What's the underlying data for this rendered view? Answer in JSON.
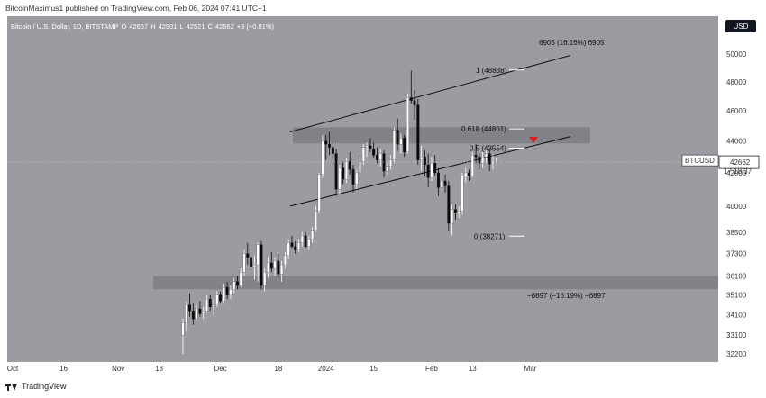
{
  "header": {
    "author_line": "BitcoinMaximus1 published on TradingView.com, Feb 06, 2024 07:41 UTC+1"
  },
  "footer": {
    "brand": "TradingView"
  },
  "currency_button": "USD",
  "colors": {
    "background": "#9b9ca1",
    "bull_candle": "#ffffff",
    "bear_candle": "#0b0b0b",
    "zone": "#7e7f84",
    "marker": "#e01f1f"
  },
  "chart_data": {
    "type": "candlestick",
    "title": "Bitcoin / U.S. Dollar, 1D, BITSTAMP",
    "ohlc_header": {
      "o_label": "O",
      "o": "42657",
      "h_label": "H",
      "h": "42901",
      "l_label": "L",
      "l": "42521",
      "c_label": "C",
      "c": "42662",
      "change": "+3 (+0.01%)"
    },
    "x_ticks": [
      "Oct",
      "16",
      "Nov",
      "13",
      "Dec",
      "18",
      "2024",
      "15",
      "Feb",
      "13",
      "Mar"
    ],
    "y_ticks": [
      "50000",
      "48000",
      "46000",
      "44000",
      "42000",
      "40000",
      "38500",
      "37300",
      "36100",
      "35100",
      "34100",
      "33100",
      "32200"
    ],
    "y_scale": "log",
    "price_label": {
      "symbol": "BTCUSD",
      "price": "42662",
      "countdown": "17:18:37"
    },
    "candles": [
      {
        "o": 33100,
        "h": 33900,
        "l": 32200,
        "c": 33700
      },
      {
        "o": 33700,
        "h": 34800,
        "l": 33300,
        "c": 34600
      },
      {
        "o": 34600,
        "h": 35200,
        "l": 34000,
        "c": 34300
      },
      {
        "o": 34300,
        "h": 34700,
        "l": 33600,
        "c": 33900
      },
      {
        "o": 33900,
        "h": 34600,
        "l": 33800,
        "c": 34400
      },
      {
        "o": 34400,
        "h": 34800,
        "l": 34000,
        "c": 34150
      },
      {
        "o": 34150,
        "h": 34500,
        "l": 33900,
        "c": 34300
      },
      {
        "o": 34300,
        "h": 35100,
        "l": 34200,
        "c": 34900
      },
      {
        "o": 34900,
        "h": 35100,
        "l": 34300,
        "c": 34500
      },
      {
        "o": 34500,
        "h": 34900,
        "l": 34100,
        "c": 34600
      },
      {
        "o": 34600,
        "h": 35300,
        "l": 34500,
        "c": 35100
      },
      {
        "o": 35100,
        "h": 35300,
        "l": 34700,
        "c": 34800
      },
      {
        "o": 34800,
        "h": 35700,
        "l": 34700,
        "c": 35500
      },
      {
        "o": 35500,
        "h": 35800,
        "l": 34900,
        "c": 35100
      },
      {
        "o": 35100,
        "h": 35600,
        "l": 34900,
        "c": 35400
      },
      {
        "o": 35400,
        "h": 36000,
        "l": 35200,
        "c": 35800
      },
      {
        "o": 35800,
        "h": 36100,
        "l": 35400,
        "c": 35600
      },
      {
        "o": 35600,
        "h": 36500,
        "l": 35500,
        "c": 36300
      },
      {
        "o": 36300,
        "h": 37500,
        "l": 36100,
        "c": 37300
      },
      {
        "o": 37300,
        "h": 37900,
        "l": 36700,
        "c": 37100
      },
      {
        "o": 37100,
        "h": 37600,
        "l": 36400,
        "c": 36600
      },
      {
        "o": 36600,
        "h": 37200,
        "l": 35900,
        "c": 36700
      },
      {
        "o": 36700,
        "h": 37900,
        "l": 35800,
        "c": 37800
      },
      {
        "o": 37800,
        "h": 38000,
        "l": 35400,
        "c": 35600
      },
      {
        "o": 35600,
        "h": 36500,
        "l": 35300,
        "c": 36300
      },
      {
        "o": 36300,
        "h": 37100,
        "l": 36000,
        "c": 36800
      },
      {
        "o": 36800,
        "h": 37400,
        "l": 36300,
        "c": 36500
      },
      {
        "o": 36500,
        "h": 37100,
        "l": 36100,
        "c": 36900
      },
      {
        "o": 36900,
        "h": 37300,
        "l": 36000,
        "c": 36200
      },
      {
        "o": 36200,
        "h": 36900,
        "l": 35800,
        "c": 36700
      },
      {
        "o": 36700,
        "h": 37400,
        "l": 36500,
        "c": 37200
      },
      {
        "o": 37200,
        "h": 38100,
        "l": 37000,
        "c": 37900
      },
      {
        "o": 37900,
        "h": 38300,
        "l": 37600,
        "c": 37700
      },
      {
        "o": 37700,
        "h": 38000,
        "l": 37300,
        "c": 37500
      },
      {
        "o": 37500,
        "h": 38100,
        "l": 37400,
        "c": 37900
      },
      {
        "o": 37900,
        "h": 38500,
        "l": 37700,
        "c": 38300
      },
      {
        "o": 38300,
        "h": 38500,
        "l": 37600,
        "c": 37700
      },
      {
        "o": 37700,
        "h": 38300,
        "l": 37500,
        "c": 38100
      },
      {
        "o": 38100,
        "h": 38800,
        "l": 37900,
        "c": 38600
      },
      {
        "o": 38600,
        "h": 40000,
        "l": 38500,
        "c": 39700
      },
      {
        "o": 39700,
        "h": 42000,
        "l": 39600,
        "c": 41900
      },
      {
        "o": 41900,
        "h": 44400,
        "l": 41700,
        "c": 44000
      },
      {
        "o": 44000,
        "h": 44400,
        "l": 42800,
        "c": 43800
      },
      {
        "o": 43800,
        "h": 44600,
        "l": 43100,
        "c": 43600
      },
      {
        "o": 43600,
        "h": 44000,
        "l": 42800,
        "c": 43200
      },
      {
        "o": 43200,
        "h": 43500,
        "l": 40600,
        "c": 41000
      },
      {
        "o": 41000,
        "h": 42500,
        "l": 40700,
        "c": 42300
      },
      {
        "o": 42300,
        "h": 42700,
        "l": 41300,
        "c": 41600
      },
      {
        "o": 41600,
        "h": 42900,
        "l": 41400,
        "c": 42700
      },
      {
        "o": 42700,
        "h": 43300,
        "l": 41900,
        "c": 42200
      },
      {
        "o": 42200,
        "h": 42500,
        "l": 40800,
        "c": 41300
      },
      {
        "o": 41300,
        "h": 42200,
        "l": 41000,
        "c": 42000
      },
      {
        "o": 42000,
        "h": 43000,
        "l": 41700,
        "c": 42700
      },
      {
        "o": 42700,
        "h": 43800,
        "l": 42500,
        "c": 43600
      },
      {
        "o": 43600,
        "h": 43900,
        "l": 43000,
        "c": 43700
      },
      {
        "o": 43700,
        "h": 44200,
        "l": 43300,
        "c": 43500
      },
      {
        "o": 43500,
        "h": 43900,
        "l": 42900,
        "c": 43100
      },
      {
        "o": 43100,
        "h": 43600,
        "l": 42600,
        "c": 42800
      },
      {
        "o": 42800,
        "h": 43500,
        "l": 42400,
        "c": 43200
      },
      {
        "o": 43200,
        "h": 43400,
        "l": 41700,
        "c": 42100
      },
      {
        "o": 42100,
        "h": 42600,
        "l": 41900,
        "c": 42400
      },
      {
        "o": 42400,
        "h": 43100,
        "l": 42200,
        "c": 42800
      },
      {
        "o": 42800,
        "h": 44900,
        "l": 42600,
        "c": 44700
      },
      {
        "o": 44700,
        "h": 45500,
        "l": 43400,
        "c": 43800
      },
      {
        "o": 43800,
        "h": 44500,
        "l": 43200,
        "c": 44200
      },
      {
        "o": 44200,
        "h": 44400,
        "l": 43000,
        "c": 43300
      },
      {
        "o": 43300,
        "h": 47200,
        "l": 43200,
        "c": 46900
      },
      {
        "o": 46900,
        "h": 48800,
        "l": 46500,
        "c": 46700
      },
      {
        "o": 46700,
        "h": 47400,
        "l": 45400,
        "c": 46400
      },
      {
        "o": 46400,
        "h": 46800,
        "l": 42500,
        "c": 42800
      },
      {
        "o": 42800,
        "h": 43700,
        "l": 42100,
        "c": 43000
      },
      {
        "o": 43000,
        "h": 43400,
        "l": 41800,
        "c": 42500
      },
      {
        "o": 42500,
        "h": 43200,
        "l": 41100,
        "c": 41700
      },
      {
        "o": 41700,
        "h": 43000,
        "l": 41500,
        "c": 42600
      },
      {
        "o": 42600,
        "h": 43100,
        "l": 41800,
        "c": 42000
      },
      {
        "o": 42000,
        "h": 42300,
        "l": 40600,
        "c": 41100
      },
      {
        "o": 41100,
        "h": 42000,
        "l": 40800,
        "c": 41500
      },
      {
        "o": 41500,
        "h": 41900,
        "l": 40800,
        "c": 41200
      },
      {
        "o": 41200,
        "h": 41500,
        "l": 38600,
        "c": 39000
      },
      {
        "o": 39000,
        "h": 40100,
        "l": 38300,
        "c": 39800
      },
      {
        "o": 39800,
        "h": 40100,
        "l": 39200,
        "c": 39600
      },
      {
        "o": 39600,
        "h": 40000,
        "l": 39300,
        "c": 39700
      },
      {
        "o": 39700,
        "h": 42000,
        "l": 39500,
        "c": 41800
      },
      {
        "o": 41800,
        "h": 42300,
        "l": 41400,
        "c": 42000
      },
      {
        "o": 42000,
        "h": 42200,
        "l": 41500,
        "c": 41800
      },
      {
        "o": 41800,
        "h": 43300,
        "l": 41700,
        "c": 43100
      },
      {
        "o": 43100,
        "h": 43800,
        "l": 42600,
        "c": 43000
      },
      {
        "o": 43000,
        "h": 43200,
        "l": 42200,
        "c": 42600
      },
      {
        "o": 42600,
        "h": 43300,
        "l": 42300,
        "c": 43000
      },
      {
        "o": 43000,
        "h": 43400,
        "l": 42600,
        "c": 43200
      },
      {
        "o": 43200,
        "h": 43500,
        "l": 42100,
        "c": 42550
      },
      {
        "o": 42550,
        "h": 43100,
        "l": 42200,
        "c": 42650
      },
      {
        "o": 42657,
        "h": 42901,
        "l": 42521,
        "c": 42662
      }
    ],
    "annotations": {
      "fib_1": "1 (48838)",
      "fib_0618": "0.618 (44801)",
      "fib_05": "0.5 (43554)",
      "fib_0": "0 (38271)",
      "measure_up": "6905 (16.16%) 6905",
      "measure_down": "−6897 (−16.19%) −6897"
    }
  }
}
